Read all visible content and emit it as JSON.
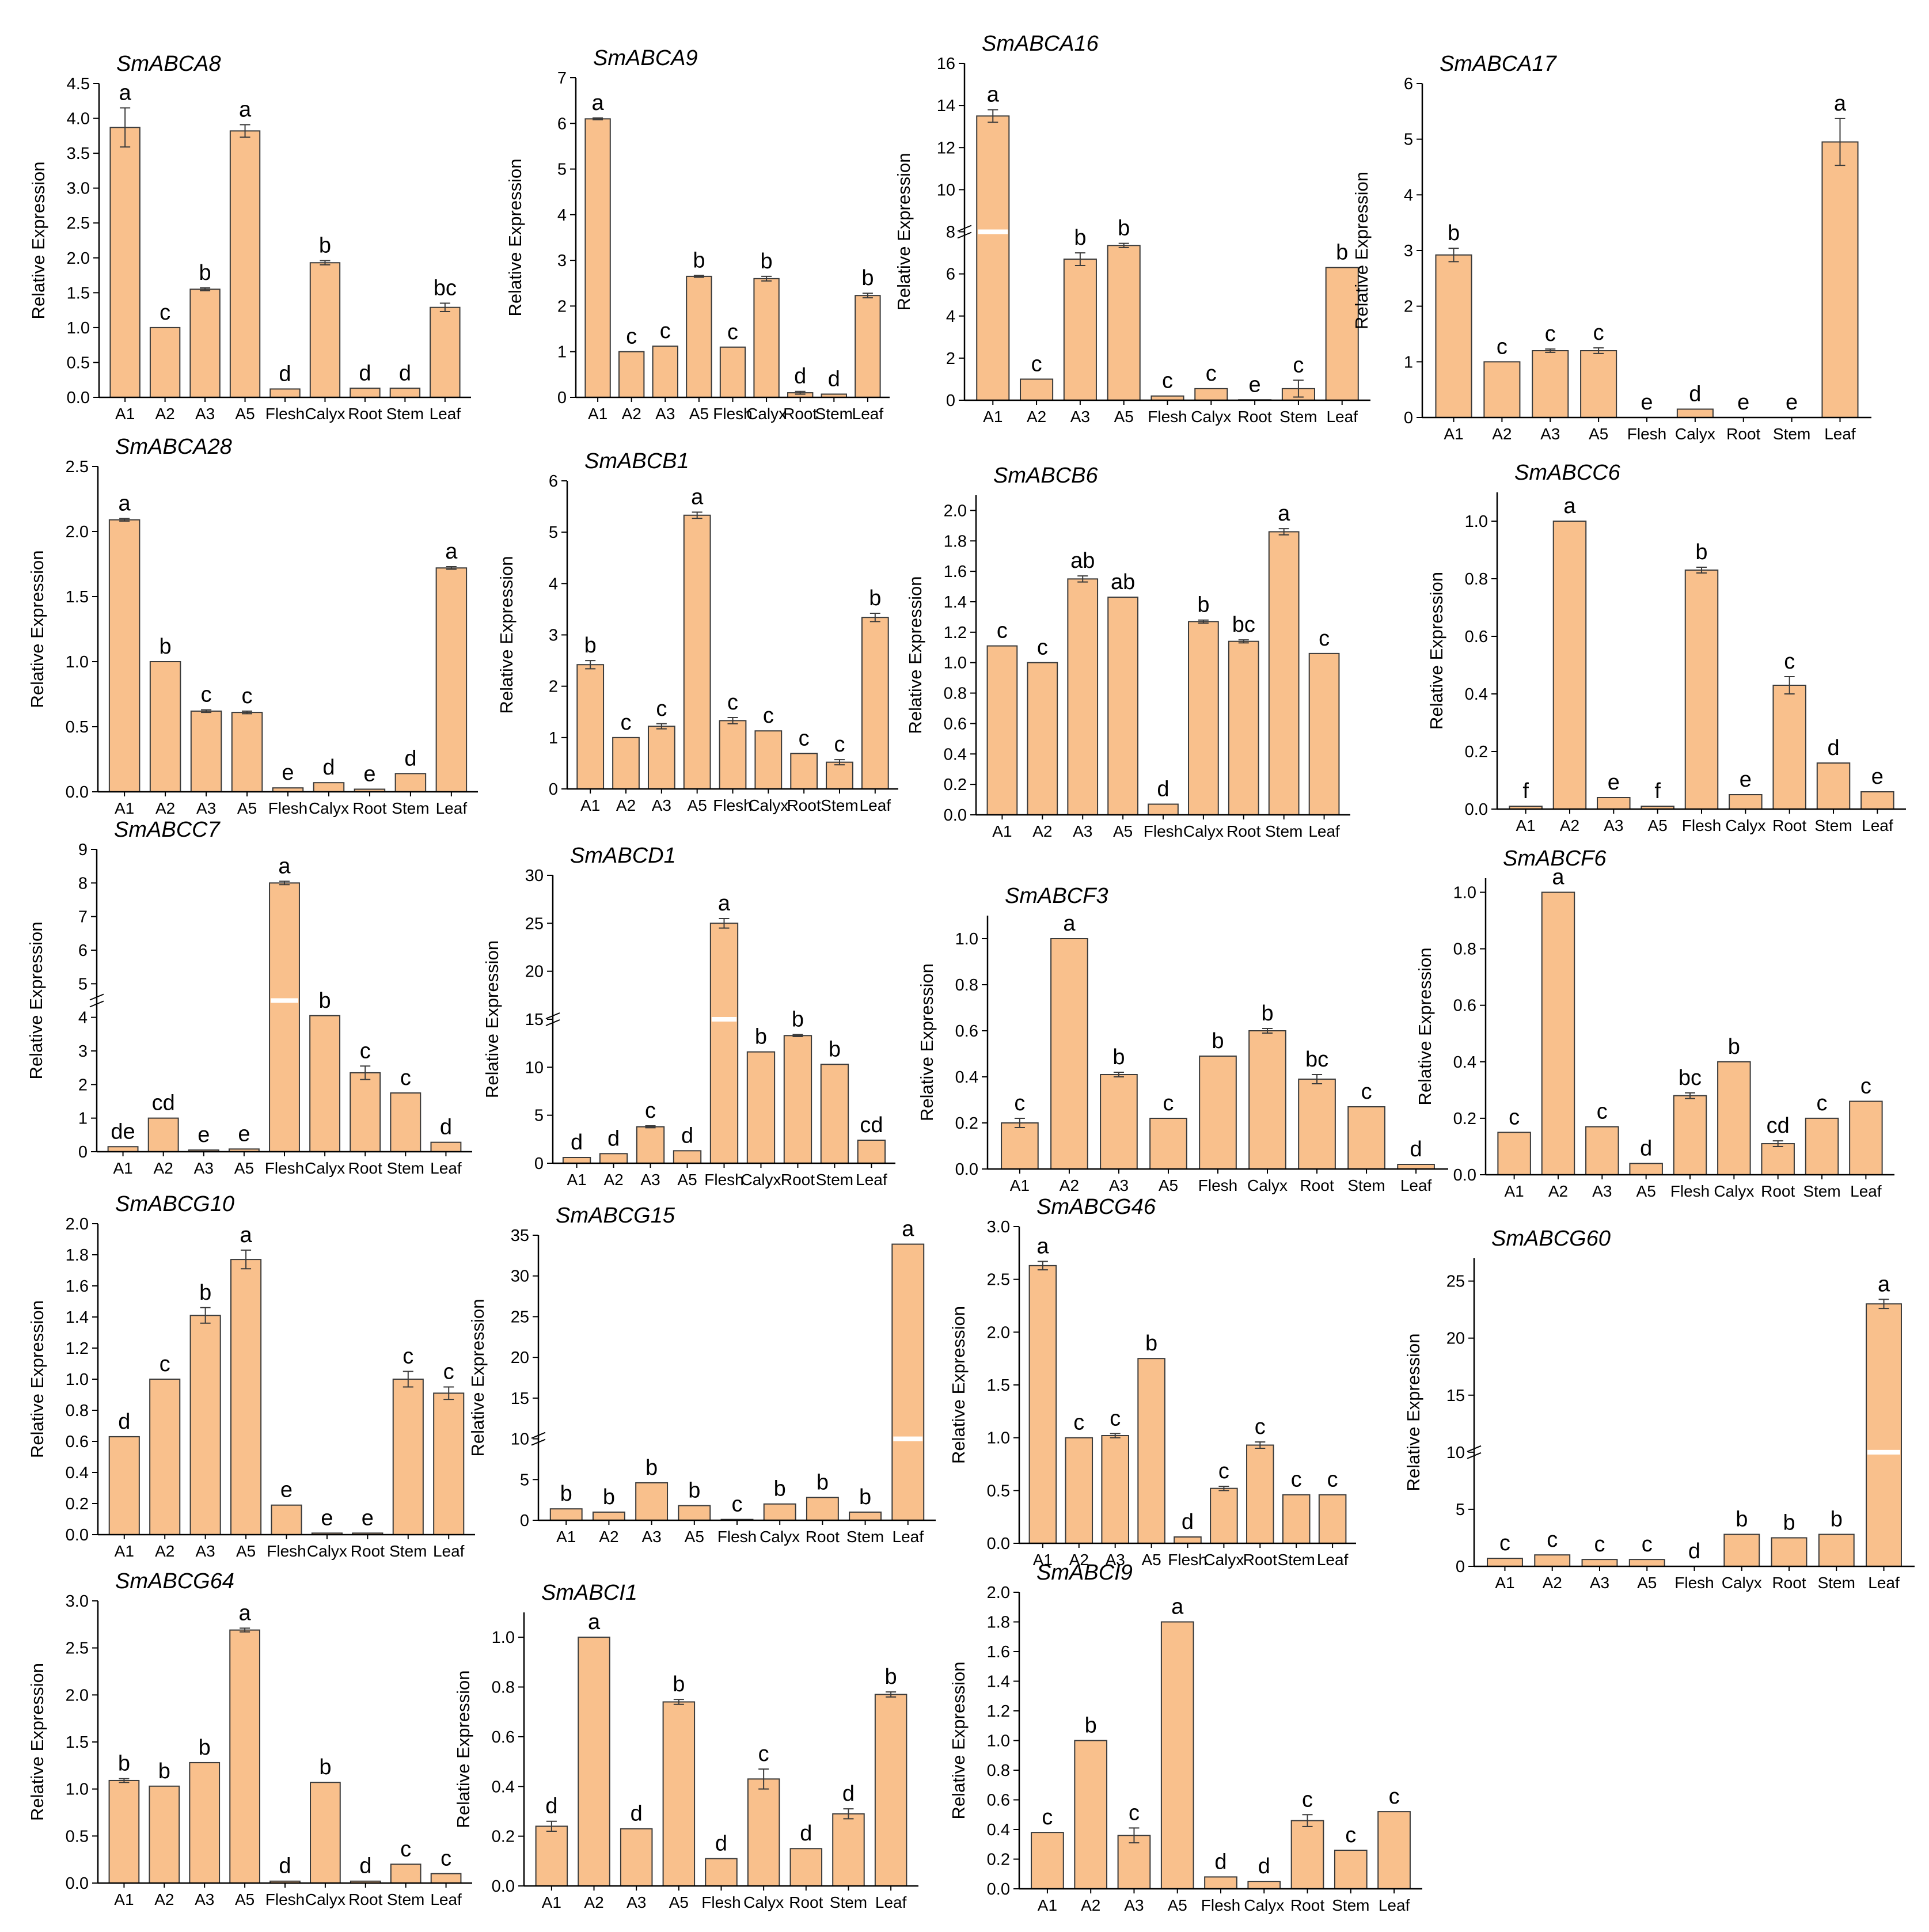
{
  "colors": {
    "bar_fill": "#F9C08C",
    "bar_stroke": "#3a3a3a",
    "axis": "#000000",
    "text": "#000000",
    "break": "#ffffff"
  },
  "chart_data": [
    {
      "type": "bar",
      "title": "SmABCA8",
      "ylabel": "Relative Expression",
      "categories": [
        "A1",
        "A2",
        "A3",
        "A5",
        "Flesh",
        "Calyx",
        "Root",
        "Stem",
        "Leaf"
      ],
      "values": [
        3.87,
        1.0,
        1.55,
        3.82,
        0.12,
        1.93,
        0.13,
        0.13,
        1.29
      ],
      "errors": [
        0.28,
        0.0,
        0.02,
        0.09,
        0.0,
        0.03,
        0.0,
        0.0,
        0.06
      ],
      "letters": [
        "a",
        "c",
        "b",
        "a",
        "d",
        "b",
        "d",
        "d",
        "bc"
      ],
      "ylim": [
        0,
        4.5
      ],
      "yticks": [
        "0.0",
        "0.5",
        "1.0",
        "1.5",
        "2.0",
        "2.5",
        "3.0",
        "3.5",
        "4.0",
        "4.5"
      ]
    },
    {
      "type": "bar",
      "title": "SmABCA9",
      "ylabel": "Relative Expression",
      "categories": [
        "A1",
        "A2",
        "A3",
        "A5",
        "Flesh",
        "Calyx",
        "Root",
        "Stem",
        "Leaf"
      ],
      "values": [
        6.1,
        1.0,
        1.12,
        2.65,
        1.1,
        2.6,
        0.1,
        0.07,
        2.23
      ],
      "errors": [
        0.02,
        0.0,
        0.0,
        0.02,
        0.0,
        0.05,
        0.03,
        0.0,
        0.05
      ],
      "letters": [
        "a",
        "c",
        "c",
        "b",
        "c",
        "b",
        "d",
        "d",
        "b"
      ],
      "ylim": [
        0,
        7
      ],
      "yticks": [
        "0",
        "1",
        "2",
        "3",
        "4",
        "5",
        "6",
        "7"
      ]
    },
    {
      "type": "bar",
      "title": "SmABCA16",
      "ylabel": "Relative Expression",
      "categories": [
        "A1",
        "A2",
        "A3",
        "A5",
        "Flesh",
        "Calyx",
        "Root",
        "Stem",
        "Leaf"
      ],
      "values": [
        13.5,
        1.0,
        6.7,
        7.35,
        0.2,
        0.55,
        0.02,
        0.55,
        6.3
      ],
      "errors": [
        0.3,
        0.0,
        0.3,
        0.1,
        0.0,
        0.0,
        0.0,
        0.4,
        0.0
      ],
      "letters": [
        "a",
        "c",
        "b",
        "b",
        "c",
        "c",
        "e",
        "c",
        "b"
      ],
      "ylim": [
        0,
        16
      ],
      "yticks": [
        "0",
        "2",
        "4",
        "6",
        "8",
        "10",
        "12",
        "14",
        "16"
      ],
      "break": {
        "low": 8,
        "high": 8
      }
    },
    {
      "type": "bar",
      "title": "SmABCA17",
      "ylabel": "Relative Expression",
      "categories": [
        "A1",
        "A2",
        "A3",
        "A5",
        "Flesh",
        "Calyx",
        "Root",
        "Stem",
        "Leaf"
      ],
      "values": [
        2.92,
        1.0,
        1.2,
        1.2,
        0.0,
        0.15,
        0.0,
        0.0,
        4.95
      ],
      "errors": [
        0.12,
        0.0,
        0.03,
        0.05,
        0.0,
        0.0,
        0.0,
        0.0,
        0.42
      ],
      "letters": [
        "b",
        "c",
        "c",
        "c",
        "e",
        "d",
        "e",
        "e",
        "a"
      ],
      "ylim": [
        0,
        6
      ],
      "yticks": [
        "0",
        "1",
        "2",
        "3",
        "4",
        "5",
        "6"
      ]
    },
    {
      "type": "bar",
      "title": "SmABCA28",
      "ylabel": "Relative Expression",
      "categories": [
        "A1",
        "A2",
        "A3",
        "A5",
        "Flesh",
        "Calyx",
        "Root",
        "Stem",
        "Leaf"
      ],
      "values": [
        2.09,
        1.0,
        0.62,
        0.61,
        0.03,
        0.07,
        0.02,
        0.14,
        1.72
      ],
      "errors": [
        0.01,
        0.0,
        0.01,
        0.01,
        0.0,
        0.0,
        0.0,
        0.0,
        0.01
      ],
      "letters": [
        "a",
        "b",
        "c",
        "c",
        "e",
        "d",
        "e",
        "d",
        "a"
      ],
      "ylim": [
        0,
        2.5
      ],
      "yticks": [
        "0.0",
        "0.5",
        "1.0",
        "1.5",
        "2.0",
        "2.5"
      ]
    },
    {
      "type": "bar",
      "title": "SmABCB1",
      "ylabel": "Relative Expression",
      "categories": [
        "A1",
        "A2",
        "A3",
        "A5",
        "Flesh",
        "Calyx",
        "Root",
        "Stem",
        "Leaf"
      ],
      "values": [
        2.42,
        1.0,
        1.22,
        5.33,
        1.33,
        1.13,
        0.69,
        0.52,
        3.34
      ],
      "errors": [
        0.08,
        0.0,
        0.05,
        0.06,
        0.06,
        0.0,
        0.0,
        0.05,
        0.08
      ],
      "letters": [
        "b",
        "c",
        "c",
        "a",
        "c",
        "c",
        "c",
        "c",
        "b"
      ],
      "ylim": [
        0,
        6
      ],
      "yticks": [
        "0",
        "1",
        "2",
        "3",
        "4",
        "5",
        "6"
      ]
    },
    {
      "type": "bar",
      "title": "SmABCB6",
      "ylabel": "Relative Expression",
      "categories": [
        "A1",
        "A2",
        "A3",
        "A5",
        "Flesh",
        "Calyx",
        "Root",
        "Stem",
        "Leaf"
      ],
      "values": [
        1.11,
        1.0,
        1.55,
        1.43,
        0.07,
        1.27,
        1.14,
        1.86,
        1.06
      ],
      "errors": [
        0.0,
        0.0,
        0.02,
        0.0,
        0.0,
        0.01,
        0.01,
        0.02,
        0.0
      ],
      "letters": [
        "c",
        "c",
        "ab",
        "ab",
        "d",
        "b",
        "bc",
        "a",
        "c"
      ],
      "ylim": [
        0,
        2.1
      ],
      "yticks": [
        "0.0",
        "0.2",
        "0.4",
        "0.6",
        "0.8",
        "1.0",
        "1.2",
        "1.4",
        "1.6",
        "1.8",
        "2.0"
      ]
    },
    {
      "type": "bar",
      "title": "SmABCC6",
      "ylabel": "Relative Expression",
      "categories": [
        "A1",
        "A2",
        "A3",
        "A5",
        "Flesh",
        "Calyx",
        "Root",
        "Stem",
        "Leaf"
      ],
      "values": [
        0.01,
        1.0,
        0.04,
        0.01,
        0.83,
        0.05,
        0.43,
        0.16,
        0.06
      ],
      "errors": [
        0.0,
        0.0,
        0.0,
        0.0,
        0.01,
        0.0,
        0.03,
        0.0,
        0.0
      ],
      "letters": [
        "f",
        "a",
        "e",
        "f",
        "b",
        "e",
        "c",
        "d",
        "e"
      ],
      "ylim": [
        0,
        1.1
      ],
      "yticks": [
        "0.0",
        "0.2",
        "0.4",
        "0.6",
        "0.8",
        "1.0"
      ]
    },
    {
      "type": "bar",
      "title": "SmABCC7",
      "ylabel": "Relative Expression",
      "categories": [
        "A1",
        "A2",
        "A3",
        "A5",
        "Flesh",
        "Calyx",
        "Root",
        "Stem",
        "Leaf"
      ],
      "values": [
        0.15,
        1.0,
        0.05,
        0.08,
        8.0,
        4.05,
        2.35,
        1.75,
        0.28
      ],
      "errors": [
        0.0,
        0.0,
        0.0,
        0.0,
        0.05,
        0.0,
        0.2,
        0.0,
        0.0
      ],
      "letters": [
        "de",
        "cd",
        "e",
        "e",
        "a",
        "b",
        "c",
        "c",
        "d"
      ],
      "ylim": [
        0,
        9
      ],
      "yticks": [
        "0",
        "1",
        "2",
        "3",
        "4",
        "5",
        "6",
        "7",
        "8",
        "9"
      ],
      "break": {
        "low": 4.3,
        "high": 4.7
      }
    },
    {
      "type": "bar",
      "title": "SmABCD1",
      "ylabel": "Relative Expression",
      "categories": [
        "A1",
        "A2",
        "A3",
        "A5",
        "Flesh",
        "Calyx",
        "Root",
        "Stem",
        "Leaf"
      ],
      "values": [
        0.6,
        1.0,
        3.8,
        1.3,
        25.0,
        11.6,
        13.3,
        10.3,
        2.4
      ],
      "errors": [
        0.0,
        0.0,
        0.1,
        0.0,
        0.5,
        0.0,
        0.1,
        0.0,
        0.0
      ],
      "letters": [
        "d",
        "d",
        "c",
        "d",
        "a",
        "b",
        "b",
        "b",
        "cd"
      ],
      "ylim": [
        0,
        30
      ],
      "yticks": [
        "0",
        "5",
        "10",
        "15",
        "20",
        "25",
        "30"
      ],
      "break": {
        "low": 15,
        "high": 15
      }
    },
    {
      "type": "bar",
      "title": "SmABCF3",
      "ylabel": "Relative Expression",
      "categories": [
        "A1",
        "A2",
        "A3",
        "A5",
        "Flesh",
        "Calyx",
        "Root",
        "Stem",
        "Leaf"
      ],
      "values": [
        0.2,
        1.0,
        0.41,
        0.22,
        0.49,
        0.6,
        0.39,
        0.27,
        0.02
      ],
      "errors": [
        0.02,
        0.0,
        0.01,
        0.0,
        0.0,
        0.01,
        0.02,
        0.0,
        0.0
      ],
      "letters": [
        "c",
        "a",
        "b",
        "c",
        "b",
        "b",
        "bc",
        "c",
        "d"
      ],
      "ylim": [
        0,
        1.1
      ],
      "yticks": [
        "0.0",
        "0.2",
        "0.4",
        "0.6",
        "0.8",
        "1.0"
      ]
    },
    {
      "type": "bar",
      "title": "SmABCF6",
      "ylabel": "Relative Expression",
      "categories": [
        "A1",
        "A2",
        "A3",
        "A5",
        "Flesh",
        "Calyx",
        "Root",
        "Stem",
        "Leaf"
      ],
      "values": [
        0.15,
        1.0,
        0.17,
        0.04,
        0.28,
        0.4,
        0.11,
        0.2,
        0.26
      ],
      "errors": [
        0.0,
        0.0,
        0.0,
        0.0,
        0.01,
        0.0,
        0.01,
        0.0,
        0.0
      ],
      "letters": [
        "c",
        "a",
        "c",
        "d",
        "bc",
        "b",
        "cd",
        "c",
        "c"
      ],
      "ylim": [
        0,
        1.05
      ],
      "yticks": [
        "0.0",
        "0.2",
        "0.4",
        "0.6",
        "0.8",
        "1.0"
      ]
    },
    {
      "type": "bar",
      "title": "SmABCG10",
      "ylabel": "Relative Expression",
      "categories": [
        "A1",
        "A2",
        "A3",
        "A5",
        "Flesh",
        "Calyx",
        "Root",
        "Stem",
        "Leaf"
      ],
      "values": [
        0.63,
        1.0,
        1.41,
        1.77,
        0.19,
        0.01,
        0.01,
        1.0,
        0.91
      ],
      "errors": [
        0.0,
        0.0,
        0.05,
        0.06,
        0.0,
        0.0,
        0.0,
        0.05,
        0.04
      ],
      "letters": [
        "d",
        "c",
        "b",
        "a",
        "e",
        "e",
        "e",
        "c",
        "c"
      ],
      "ylim": [
        0,
        2.0
      ],
      "yticks": [
        "0.0",
        "0.2",
        "0.4",
        "0.6",
        "0.8",
        "1.0",
        "1.2",
        "1.4",
        "1.6",
        "1.8",
        "2.0"
      ]
    },
    {
      "type": "bar",
      "title": "SmABCG15",
      "ylabel": "Relative Expression",
      "categories": [
        "A1",
        "A2",
        "A3",
        "A5",
        "Flesh",
        "Calyx",
        "Root",
        "Stem",
        "Leaf"
      ],
      "values": [
        1.4,
        1.0,
        4.6,
        1.8,
        0.1,
        2.0,
        2.8,
        1.0,
        33.9
      ],
      "errors": [
        0.0,
        0.0,
        0.0,
        0.0,
        0.0,
        0.0,
        0.0,
        0.0,
        0.0
      ],
      "letters": [
        "b",
        "b",
        "b",
        "b",
        "c",
        "b",
        "b",
        "b",
        "a"
      ],
      "ylim": [
        0,
        35
      ],
      "yticks": [
        "0",
        "5",
        "10",
        "15",
        "20",
        "25",
        "30",
        "35"
      ],
      "break": {
        "low": 10,
        "high": 10
      }
    },
    {
      "type": "bar",
      "title": "SmABCG46",
      "ylabel": "Relative Expression",
      "categories": [
        "A1",
        "A2",
        "A3",
        "A5",
        "Flesh",
        "Calyx",
        "Root",
        "Stem",
        "Leaf"
      ],
      "values": [
        2.63,
        1.0,
        1.02,
        1.75,
        0.06,
        0.52,
        0.93,
        0.46,
        0.46
      ],
      "errors": [
        0.04,
        0.0,
        0.02,
        0.0,
        0.0,
        0.02,
        0.03,
        0.0,
        0.0
      ],
      "letters": [
        "a",
        "c",
        "c",
        "b",
        "d",
        "c",
        "c",
        "c",
        "c"
      ],
      "ylim": [
        0,
        3.0
      ],
      "yticks": [
        "0.0",
        "0.5",
        "1.0",
        "1.5",
        "2.0",
        "2.5",
        "3.0"
      ]
    },
    {
      "type": "bar",
      "title": "SmABCG60",
      "ylabel": "Relative Expression",
      "categories": [
        "A1",
        "A2",
        "A3",
        "A5",
        "Flesh",
        "Calyx",
        "Root",
        "Stem",
        "Leaf"
      ],
      "values": [
        0.7,
        1.0,
        0.6,
        0.6,
        0.0,
        2.8,
        2.5,
        2.8,
        23.0
      ],
      "errors": [
        0.0,
        0.0,
        0.0,
        0.0,
        0.0,
        0.0,
        0.0,
        0.0,
        0.4
      ],
      "letters": [
        "c",
        "c",
        "c",
        "c",
        "d",
        "b",
        "b",
        "b",
        "a"
      ],
      "ylim": [
        0,
        27
      ],
      "yticks": [
        "0",
        "5",
        "10",
        "15",
        "20",
        "25"
      ],
      "break": {
        "low": 10,
        "high": 10
      }
    },
    {
      "type": "bar",
      "title": "SmABCG64",
      "ylabel": "Relative Expression",
      "categories": [
        "A1",
        "A2",
        "A3",
        "A5",
        "Flesh",
        "Calyx",
        "Root",
        "Stem",
        "Leaf"
      ],
      "values": [
        1.09,
        1.03,
        1.28,
        2.69,
        0.02,
        1.07,
        0.02,
        0.2,
        0.1
      ],
      "errors": [
        0.02,
        0.0,
        0.0,
        0.02,
        0.0,
        0.0,
        0.0,
        0.0,
        0.0
      ],
      "letters": [
        "b",
        "b",
        "b",
        "a",
        "d",
        "b",
        "d",
        "c",
        "c"
      ],
      "ylim": [
        0,
        3.0
      ],
      "yticks": [
        "0.0",
        "0.5",
        "1.0",
        "1.5",
        "2.0",
        "2.5",
        "3.0"
      ]
    },
    {
      "type": "bar",
      "title": "SmABCI1",
      "ylabel": "Relative Expression",
      "categories": [
        "A1",
        "A2",
        "A3",
        "A5",
        "Flesh",
        "Calyx",
        "Root",
        "Stem",
        "Leaf"
      ],
      "values": [
        0.24,
        1.0,
        0.23,
        0.74,
        0.11,
        0.43,
        0.15,
        0.29,
        0.77
      ],
      "errors": [
        0.02,
        0.0,
        0.0,
        0.01,
        0.0,
        0.04,
        0.0,
        0.02,
        0.01
      ],
      "letters": [
        "d",
        "a",
        "d",
        "b",
        "d",
        "c",
        "d",
        "d",
        "b"
      ],
      "ylim": [
        0,
        1.1
      ],
      "yticks": [
        "0.0",
        "0.2",
        "0.4",
        "0.6",
        "0.8",
        "1.0"
      ]
    },
    {
      "type": "bar",
      "title": "SmABCI9",
      "ylabel": "Relative Expression",
      "categories": [
        "A1",
        "A2",
        "A3",
        "A5",
        "Flesh",
        "Calyx",
        "Root",
        "Stem",
        "Leaf"
      ],
      "values": [
        0.38,
        1.0,
        0.36,
        1.8,
        0.08,
        0.05,
        0.46,
        0.26,
        0.52
      ],
      "errors": [
        0.0,
        0.0,
        0.05,
        0.0,
        0.0,
        0.0,
        0.04,
        0.0,
        0.0
      ],
      "letters": [
        "c",
        "b",
        "c",
        "a",
        "d",
        "d",
        "c",
        "c",
        "c"
      ],
      "ylim": [
        0,
        2.0
      ],
      "yticks": [
        "0.0",
        "0.2",
        "0.4",
        "0.6",
        "0.8",
        "1.0",
        "1.2",
        "1.4",
        "1.6",
        "1.8",
        "2.0"
      ]
    }
  ]
}
